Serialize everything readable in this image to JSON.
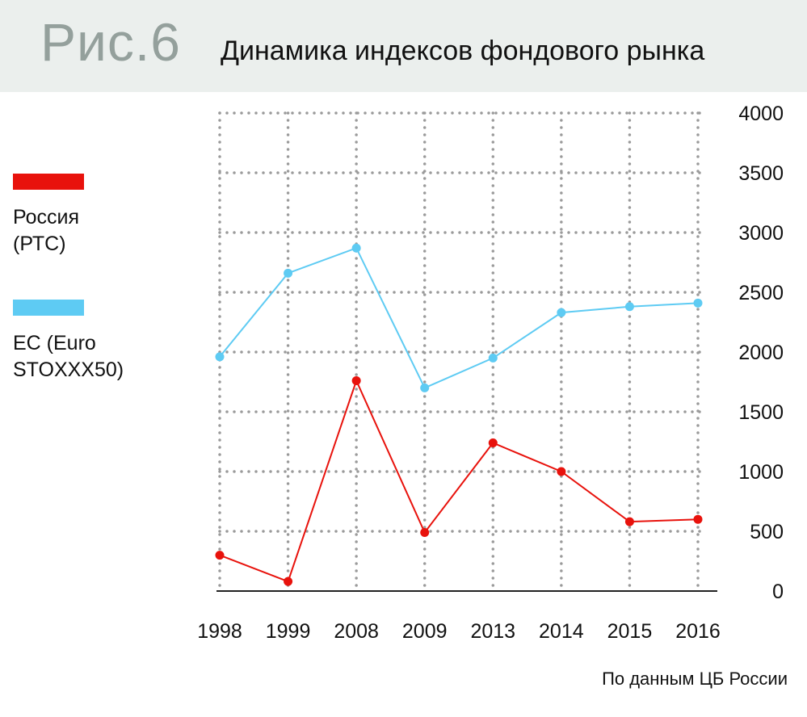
{
  "header": {
    "figure_label": "Рис.6",
    "title": "Динамика индексов фондового рынка"
  },
  "source": "По данным ЦБ России",
  "colors": {
    "russia": "#e8120c",
    "eu": "#5ecbf3",
    "grid": "#9a9a9a",
    "header_bg": "#ebefed"
  },
  "chart_data": {
    "type": "line",
    "title": "Динамика индексов фондового рынка",
    "categories": [
      "1998",
      "1999",
      "2008",
      "2009",
      "2013",
      "2014",
      "2015",
      "2016"
    ],
    "ylim": [
      0,
      4000
    ],
    "yticks": [
      "0",
      "500",
      "1000",
      "1500",
      "2000",
      "2500",
      "3000",
      "3500",
      "4000"
    ],
    "grid": true,
    "legend_placement": "left",
    "series": [
      {
        "name": "Россия (РТС)",
        "name_lines": [
          "Россия",
          "(РТС)"
        ],
        "color": "#e8120c",
        "values": [
          300,
          80,
          1760,
          490,
          1240,
          1000,
          580,
          600
        ]
      },
      {
        "name": "ЕС (Euro STOXXX50)",
        "name_lines": [
          "ЕС (Euro",
          "STOXXX50)"
        ],
        "color": "#5ecbf3",
        "values": [
          1960,
          2660,
          2870,
          1700,
          1950,
          2330,
          2380,
          2410
        ]
      }
    ]
  }
}
